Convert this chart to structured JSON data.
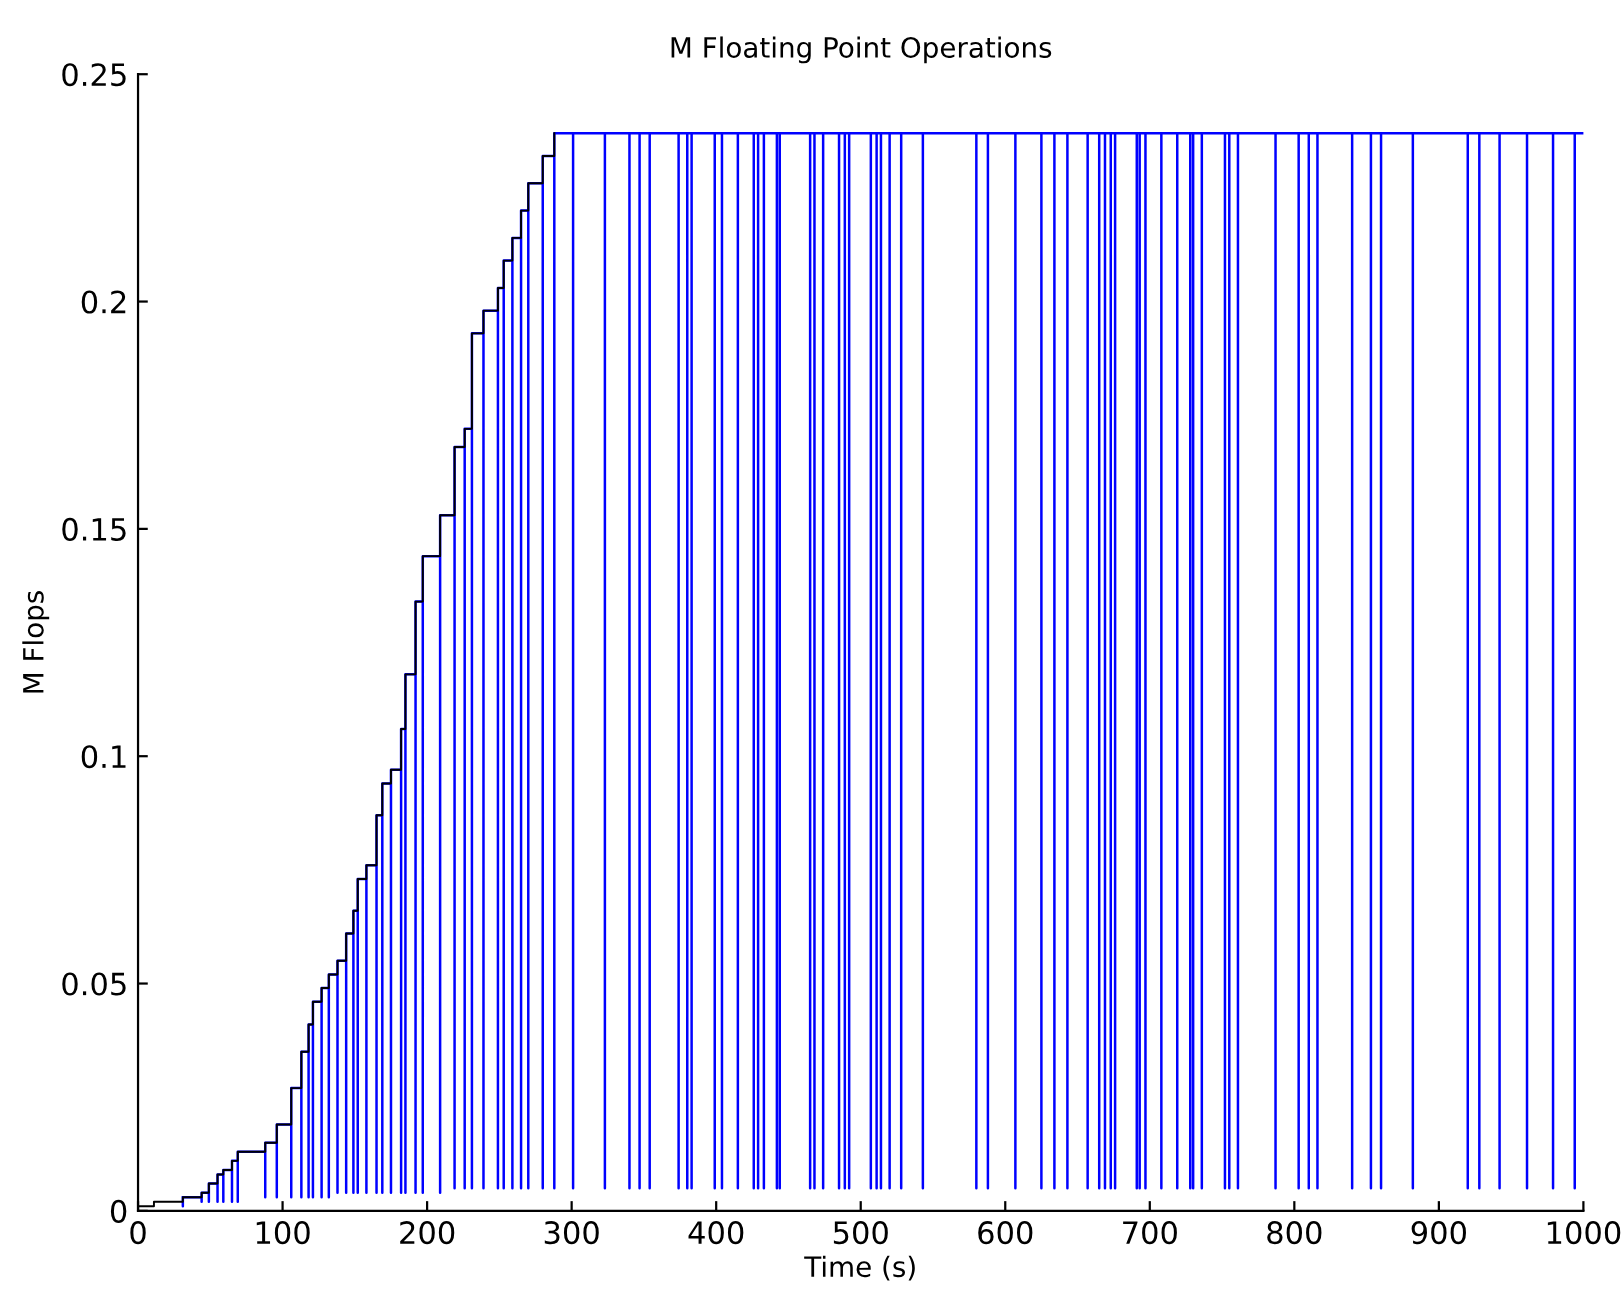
{
  "chart_data": {
    "type": "line",
    "title": "M Floating Point Operations",
    "xlabel": "Time (s)",
    "ylabel": "M Flops",
    "xlim": [
      0,
      1000
    ],
    "xticks": [
      0,
      100,
      200,
      300,
      400,
      500,
      600,
      700,
      800,
      900,
      1000
    ],
    "ylim": [
      0,
      0.25
    ],
    "yticks": [
      0,
      0.05,
      0.1,
      0.15,
      0.2,
      0.25
    ],
    "grid": false,
    "legend": false,
    "series": [
      {
        "color": "#0000ff",
        "x": [
          31,
          31,
          31,
          44,
          44,
          44,
          49,
          49,
          49,
          55,
          55,
          55,
          59,
          59,
          59,
          65,
          65,
          65,
          69,
          69,
          69,
          88,
          88,
          88,
          96,
          96,
          96,
          106,
          106,
          106,
          113,
          113,
          113,
          118,
          118,
          118,
          121,
          121,
          121,
          127,
          127,
          127,
          132,
          132,
          132,
          138,
          138,
          138,
          144,
          144,
          144,
          149,
          149,
          149,
          152,
          152,
          152,
          158,
          158,
          158,
          165,
          165,
          165,
          169,
          169,
          169,
          175,
          175,
          175,
          182,
          182,
          182,
          185,
          185,
          185,
          192,
          192,
          192,
          197,
          197,
          197,
          209,
          209,
          209,
          219,
          219,
          219,
          226,
          226,
          226,
          231,
          231,
          231,
          239,
          239,
          239,
          249,
          249,
          249,
          253,
          253,
          253,
          259,
          259,
          259,
          265,
          265,
          265,
          270,
          270,
          270,
          280,
          280,
          280,
          288,
          288,
          288,
          301,
          301,
          301,
          323,
          323,
          323,
          340,
          340,
          340,
          347,
          347,
          347,
          354,
          354,
          354,
          374,
          374,
          374,
          380,
          380,
          380,
          383,
          383,
          383,
          399,
          399,
          399,
          404,
          404,
          404,
          415,
          415,
          415,
          426,
          426,
          426,
          429,
          429,
          429,
          433,
          433,
          433,
          442,
          442,
          442,
          444,
          444,
          444,
          465,
          465,
          465,
          468,
          468,
          468,
          474,
          474,
          474,
          485,
          485,
          485,
          489,
          489,
          489,
          492,
          492,
          492,
          507,
          507,
          507,
          511,
          511,
          511,
          514,
          514,
          514,
          520,
          520,
          520,
          528,
          528,
          528,
          543,
          543,
          543,
          580,
          580,
          580,
          588,
          588,
          588,
          607,
          607,
          607,
          625,
          625,
          625,
          634,
          634,
          634,
          643,
          643,
          643,
          657,
          657,
          657,
          665,
          665,
          665,
          669,
          669,
          669,
          673,
          673,
          673,
          676,
          676,
          676,
          691,
          691,
          691,
          693,
          693,
          693,
          697,
          697,
          697,
          708,
          708,
          708,
          719,
          719,
          719,
          728,
          728,
          728,
          730,
          730,
          730,
          736,
          736,
          736,
          752,
          752,
          752,
          755,
          755,
          755,
          761,
          761,
          761,
          787,
          787,
          787,
          803,
          803,
          803,
          810,
          810,
          810,
          816,
          816,
          816,
          840,
          840,
          840,
          853,
          853,
          853,
          860,
          860,
          860,
          882,
          882,
          882,
          920,
          920,
          920,
          928,
          928,
          928,
          942,
          942,
          942,
          961,
          961,
          961,
          979,
          979,
          979,
          994,
          994,
          994,
          1000
        ],
        "values": [
          0.003,
          0.001,
          0.003,
          0.003,
          0.002,
          0.004,
          0.004,
          0.002,
          0.006,
          0.006,
          0.002,
          0.008,
          0.008,
          0.002,
          0.009,
          0.009,
          0.002,
          0.011,
          0.011,
          0.002,
          0.013,
          0.013,
          0.003,
          0.015,
          0.015,
          0.003,
          0.019,
          0.019,
          0.003,
          0.027,
          0.027,
          0.003,
          0.035,
          0.035,
          0.003,
          0.041,
          0.041,
          0.003,
          0.046,
          0.046,
          0.003,
          0.049,
          0.049,
          0.003,
          0.052,
          0.052,
          0.004,
          0.055,
          0.055,
          0.004,
          0.061,
          0.061,
          0.004,
          0.066,
          0.066,
          0.004,
          0.073,
          0.073,
          0.004,
          0.076,
          0.076,
          0.004,
          0.087,
          0.087,
          0.004,
          0.094,
          0.094,
          0.004,
          0.097,
          0.097,
          0.004,
          0.106,
          0.106,
          0.004,
          0.118,
          0.118,
          0.004,
          0.134,
          0.134,
          0.004,
          0.144,
          0.144,
          0.004,
          0.153,
          0.153,
          0.005,
          0.168,
          0.168,
          0.005,
          0.172,
          0.172,
          0.005,
          0.193,
          0.193,
          0.005,
          0.198,
          0.198,
          0.005,
          0.203,
          0.203,
          0.005,
          0.209,
          0.209,
          0.005,
          0.214,
          0.214,
          0.005,
          0.22,
          0.22,
          0.005,
          0.226,
          0.226,
          0.005,
          0.232,
          0.232,
          0.005,
          0.237,
          0.237,
          0.005,
          0.237,
          0.237,
          0.005,
          0.237,
          0.237,
          0.005,
          0.237,
          0.237,
          0.005,
          0.237,
          0.237,
          0.005,
          0.237,
          0.237,
          0.005,
          0.237,
          0.237,
          0.005,
          0.237,
          0.237,
          0.005,
          0.237,
          0.237,
          0.005,
          0.237,
          0.237,
          0.005,
          0.237,
          0.237,
          0.005,
          0.237,
          0.237,
          0.005,
          0.237,
          0.237,
          0.005,
          0.237,
          0.237,
          0.005,
          0.237,
          0.237,
          0.005,
          0.237,
          0.237,
          0.005,
          0.237,
          0.237,
          0.005,
          0.237,
          0.237,
          0.005,
          0.237,
          0.237,
          0.005,
          0.237,
          0.237,
          0.005,
          0.237,
          0.237,
          0.005,
          0.237,
          0.237,
          0.005,
          0.237,
          0.237,
          0.005,
          0.237,
          0.237,
          0.005,
          0.237,
          0.237,
          0.005,
          0.237,
          0.237,
          0.005,
          0.237,
          0.237,
          0.005,
          0.237,
          0.237,
          0.005,
          0.237,
          0.237,
          0.005,
          0.237,
          0.237,
          0.005,
          0.237,
          0.237,
          0.005,
          0.237,
          0.237,
          0.005,
          0.237,
          0.237,
          0.005,
          0.237,
          0.237,
          0.005,
          0.237,
          0.237,
          0.005,
          0.237,
          0.237,
          0.005,
          0.237,
          0.237,
          0.005,
          0.237,
          0.237,
          0.005,
          0.237,
          0.237,
          0.005,
          0.237,
          0.237,
          0.005,
          0.237,
          0.237,
          0.005,
          0.237,
          0.237,
          0.005,
          0.237,
          0.237,
          0.005,
          0.237,
          0.237,
          0.005,
          0.237,
          0.237,
          0.005,
          0.237,
          0.237,
          0.005,
          0.237,
          0.237,
          0.005,
          0.237,
          0.237,
          0.005,
          0.237,
          0.237,
          0.005,
          0.237,
          0.237,
          0.005,
          0.237,
          0.237,
          0.005,
          0.237,
          0.237,
          0.005,
          0.237,
          0.237,
          0.005,
          0.237,
          0.237,
          0.005,
          0.237,
          0.237,
          0.005,
          0.237,
          0.237,
          0.005,
          0.237,
          0.237,
          0.005,
          0.237,
          0.237,
          0.005,
          0.237,
          0.237,
          0.005,
          0.237,
          0.237,
          0.005,
          0.237,
          0.237,
          0.005,
          0.237,
          0.237,
          0.005,
          0.237,
          0.237,
          0.005,
          0.237,
          0.237,
          0.005,
          0.237,
          0.237
        ]
      },
      {
        "type": "step",
        "color": "#000000",
        "x": [
          0,
          2,
          11,
          31,
          44,
          49,
          55,
          59,
          65,
          69,
          88,
          96,
          106,
          113,
          118,
          121,
          127,
          132,
          138,
          144,
          149,
          152,
          158,
          165,
          169,
          175,
          182,
          185,
          192,
          197,
          209,
          219,
          226,
          231,
          239,
          249,
          253,
          259,
          265,
          270,
          280,
          288
        ],
        "values": [
          0.001,
          0.001,
          0.002,
          0.003,
          0.004,
          0.006,
          0.008,
          0.009,
          0.011,
          0.013,
          0.015,
          0.019,
          0.027,
          0.035,
          0.041,
          0.046,
          0.049,
          0.052,
          0.055,
          0.061,
          0.066,
          0.073,
          0.076,
          0.087,
          0.094,
          0.097,
          0.106,
          0.118,
          0.134,
          0.144,
          0.153,
          0.168,
          0.172,
          0.193,
          0.198,
          0.203,
          0.209,
          0.214,
          0.22,
          0.226,
          0.232,
          0.237
        ]
      }
    ]
  }
}
